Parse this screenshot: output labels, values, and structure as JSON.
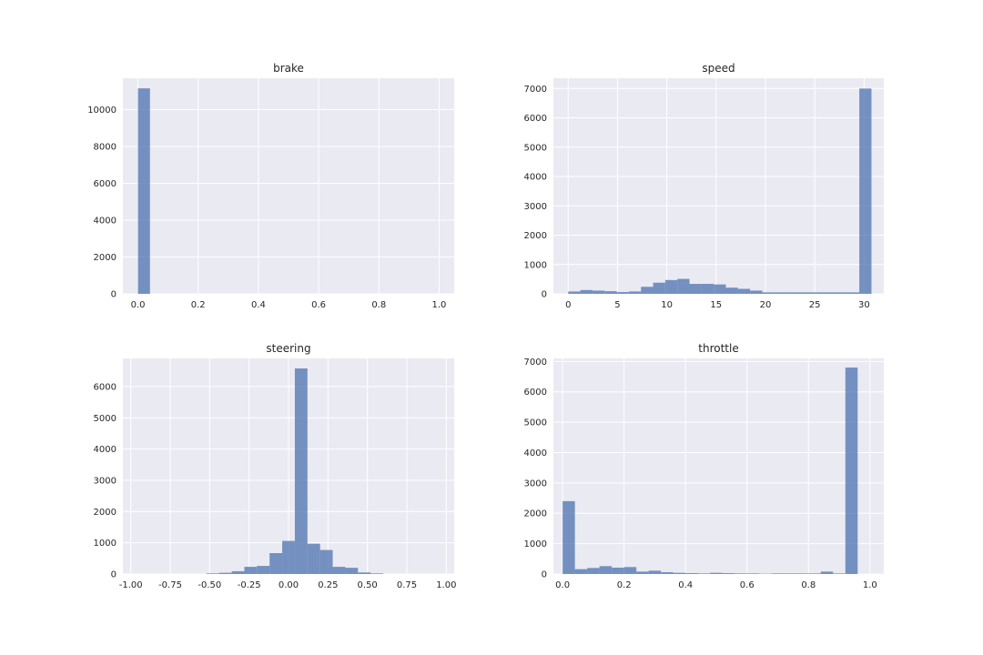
{
  "chart_data": [
    {
      "type": "bar",
      "title": "brake",
      "xlim": [
        -0.05,
        1.05
      ],
      "ylim": [
        0,
        11700
      ],
      "xticks": [
        0.0,
        0.2,
        0.4,
        0.6,
        0.8,
        1.0
      ],
      "xtick_labels": [
        "0.0",
        "0.2",
        "0.4",
        "0.6",
        "0.8",
        "1.0"
      ],
      "yticks": [
        0,
        2000,
        4000,
        6000,
        8000,
        10000
      ],
      "ytick_labels": [
        "0",
        "2000",
        "4000",
        "6000",
        "8000",
        "10000"
      ],
      "bin_start": 0.0,
      "bin_width": 0.04,
      "values": [
        11150,
        0,
        0,
        0,
        0,
        0,
        0,
        0,
        0,
        0,
        0,
        0,
        0,
        0,
        0,
        0,
        0,
        0,
        0,
        0,
        0,
        0,
        0,
        0,
        0
      ]
    },
    {
      "type": "bar",
      "title": "speed",
      "xlim": [
        -1.5,
        32
      ],
      "ylim": [
        0,
        7350
      ],
      "xticks": [
        0,
        5,
        10,
        15,
        20,
        25,
        30
      ],
      "xtick_labels": [
        "0",
        "5",
        "10",
        "15",
        "20",
        "25",
        "30"
      ],
      "yticks": [
        0,
        1000,
        2000,
        3000,
        4000,
        5000,
        6000,
        7000
      ],
      "ytick_labels": [
        "0",
        "1000",
        "2000",
        "3000",
        "4000",
        "5000",
        "6000",
        "7000"
      ],
      "bin_start": 0.0,
      "bin_width": 1.23,
      "values": [
        80,
        130,
        110,
        90,
        60,
        80,
        240,
        380,
        470,
        510,
        340,
        340,
        320,
        210,
        170,
        110,
        50,
        50,
        50,
        50,
        50,
        50,
        50,
        50,
        7000
      ]
    },
    {
      "type": "bar",
      "title": "steering",
      "xlim": [
        -1.05,
        1.05
      ],
      "ylim": [
        0,
        6900
      ],
      "xticks": [
        -1.0,
        -0.75,
        -0.5,
        -0.25,
        0.0,
        0.25,
        0.5,
        0.75,
        1.0
      ],
      "xtick_labels": [
        "-1.00",
        "-0.75",
        "-0.50",
        "-0.25",
        "0.00",
        "0.25",
        "0.50",
        "0.75",
        "1.00"
      ],
      "yticks": [
        0,
        1000,
        2000,
        3000,
        4000,
        5000,
        6000
      ],
      "ytick_labels": [
        "0",
        "1000",
        "2000",
        "3000",
        "4000",
        "5000",
        "6000"
      ],
      "bin_start": -1.0,
      "bin_width": 0.08,
      "values": [
        0,
        0,
        0,
        0,
        0,
        0,
        20,
        40,
        90,
        230,
        260,
        670,
        1060,
        6580,
        970,
        770,
        230,
        200,
        50,
        20,
        0,
        0,
        0,
        0,
        0
      ]
    },
    {
      "type": "bar",
      "title": "throttle",
      "xlim": [
        -0.03,
        1.045
      ],
      "ylim": [
        0,
        7100
      ],
      "xticks": [
        0.0,
        0.2,
        0.4,
        0.6,
        0.8,
        1.0
      ],
      "xtick_labels": [
        "0.0",
        "0.2",
        "0.4",
        "0.6",
        "0.8",
        "1.0"
      ],
      "yticks": [
        0,
        1000,
        2000,
        3000,
        4000,
        5000,
        6000,
        7000
      ],
      "ytick_labels": [
        "0",
        "1000",
        "2000",
        "3000",
        "4000",
        "5000",
        "6000",
        "7000"
      ],
      "bin_start": 0.0,
      "bin_width": 0.04,
      "values": [
        2400,
        160,
        200,
        260,
        210,
        230,
        80,
        110,
        60,
        40,
        30,
        20,
        40,
        30,
        20,
        20,
        10,
        20,
        20,
        20,
        20,
        80,
        20,
        6800
      ]
    }
  ]
}
